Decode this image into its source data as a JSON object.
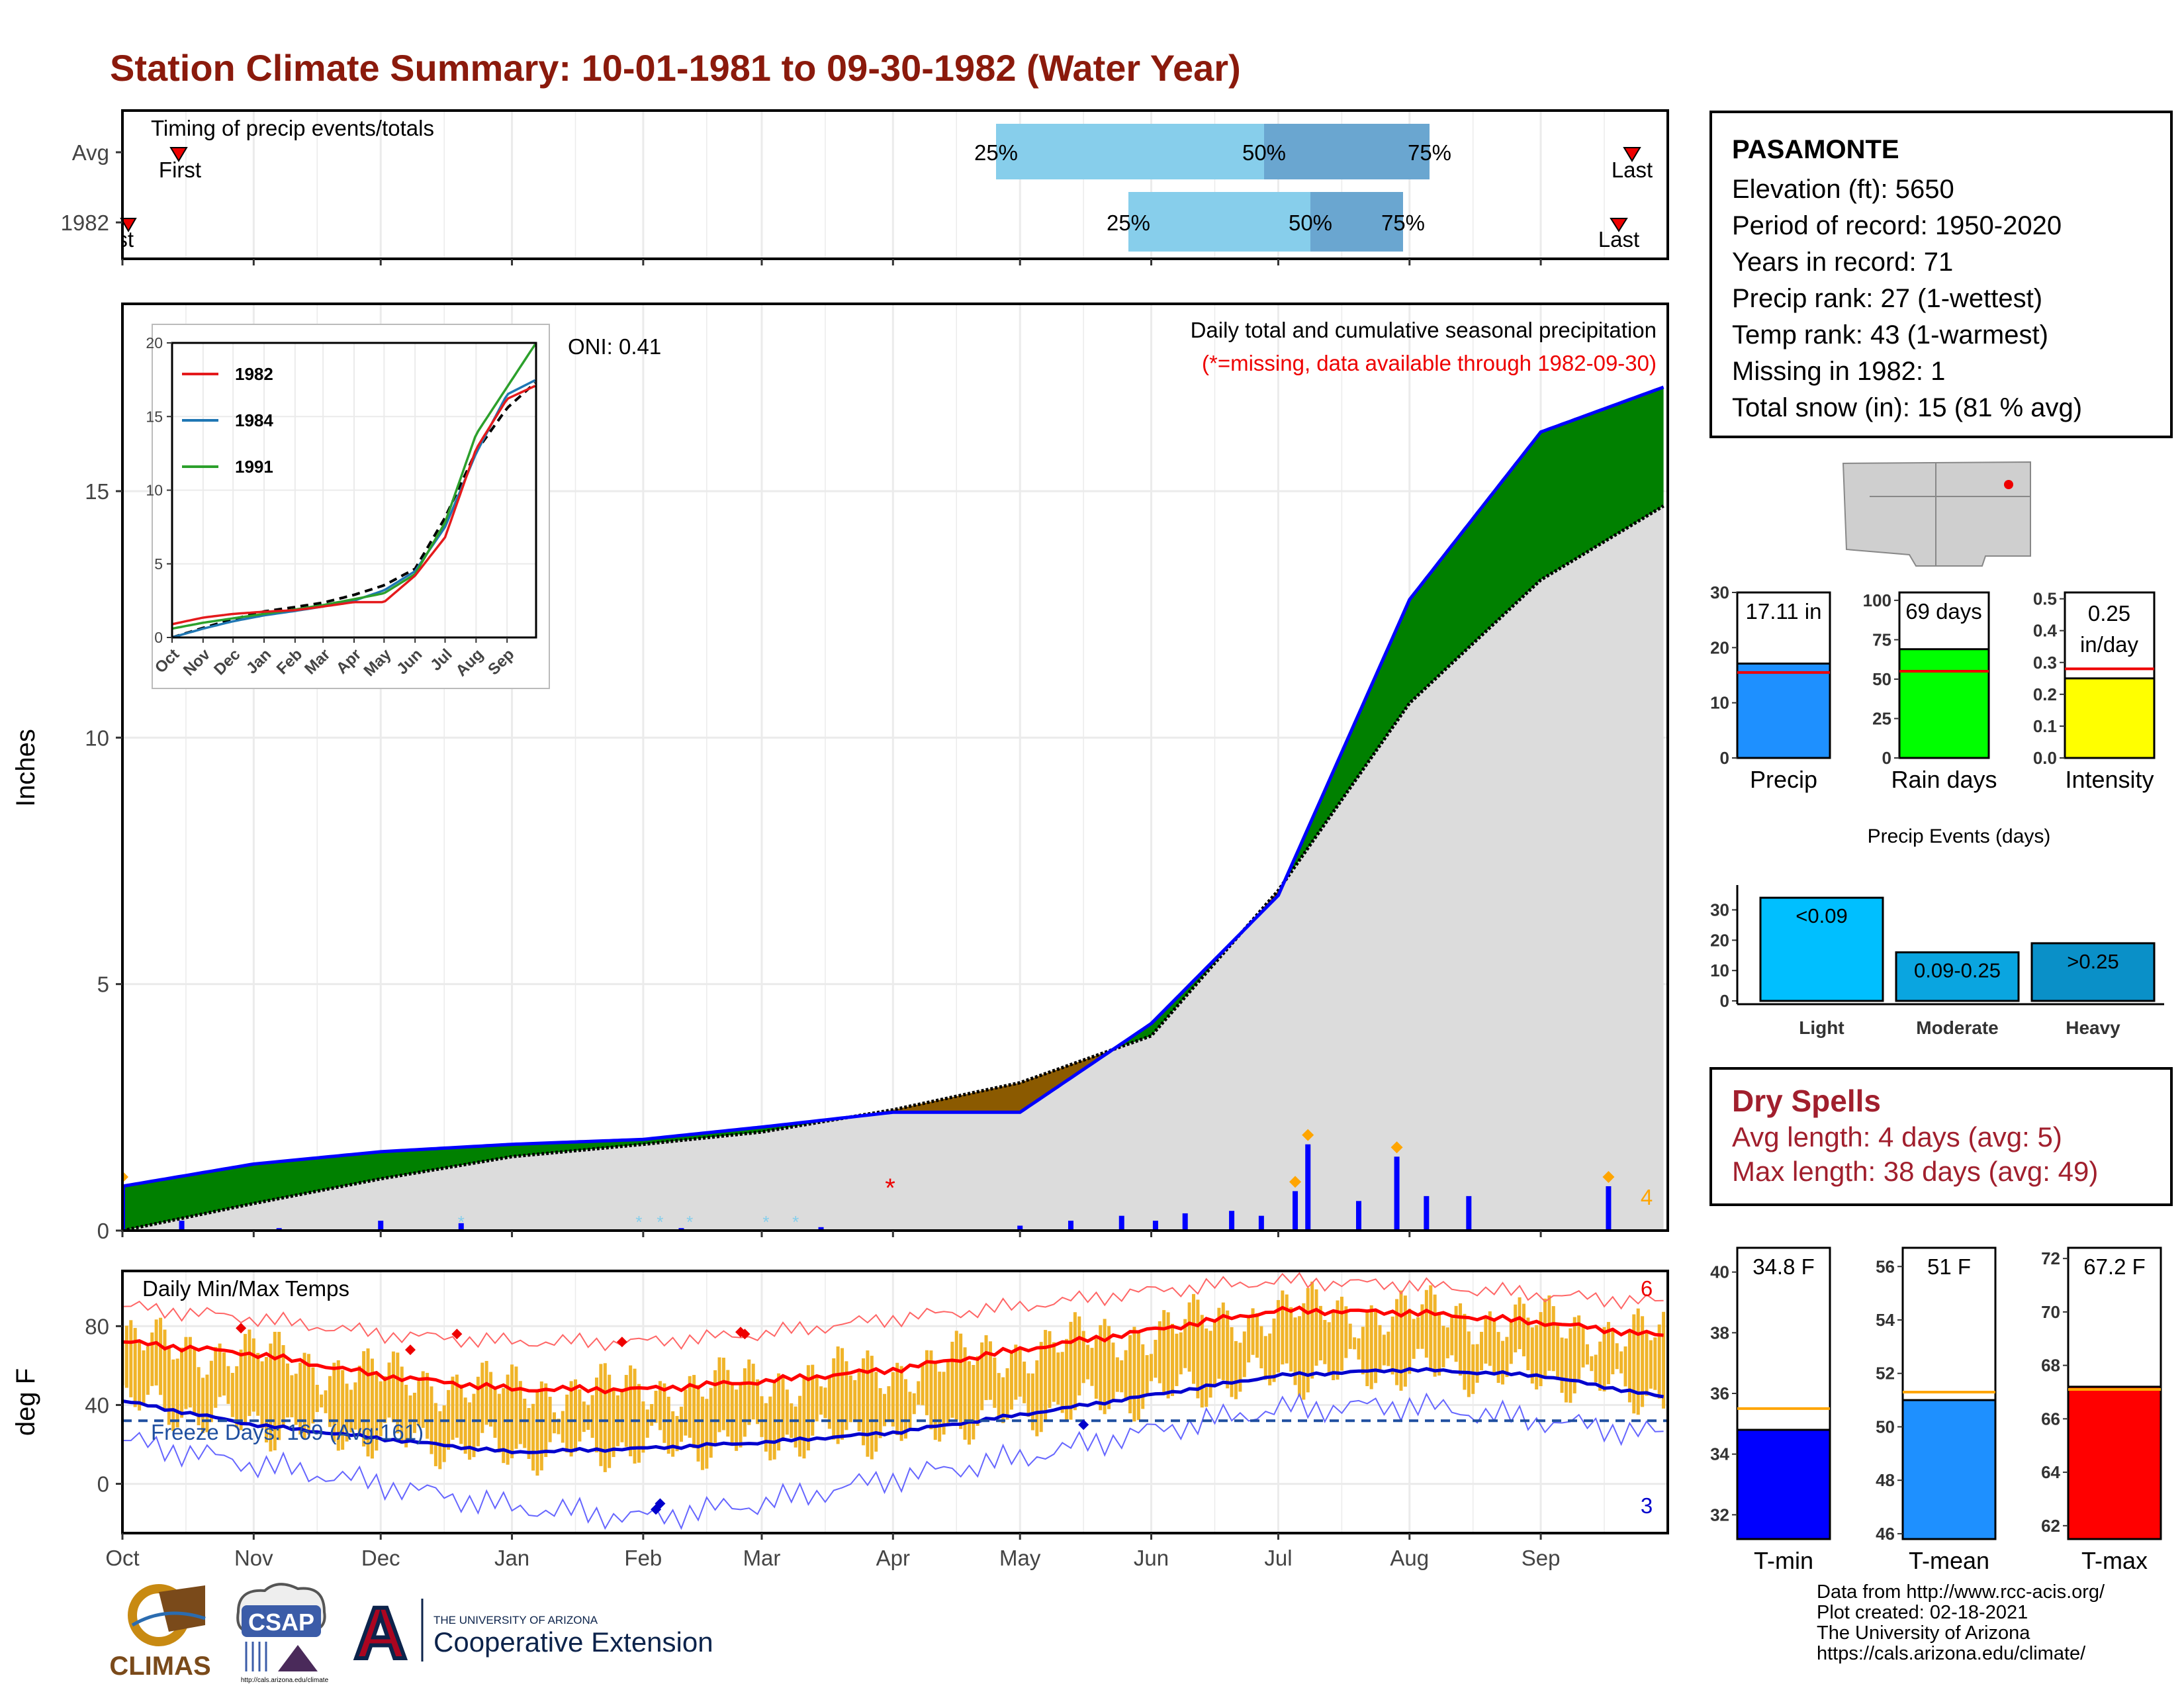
{
  "title": "Station Climate Summary: 10-01-1981 to 09-30-1982 (Water Year)",
  "timing": {
    "label": "Timing of precip events/totals",
    "rows": [
      "Avg",
      "1982"
    ],
    "avg": {
      "first": "First",
      "last": "Last",
      "p25": "25%",
      "p50": "50%",
      "p75": "75%"
    },
    "y1982": {
      "first": "First",
      "last": "Last",
      "p25": "25%",
      "p50": "50%",
      "p75": "75%"
    }
  },
  "precip_panel": {
    "ylabel": "Inches",
    "oni": "ONI: 0.41",
    "note1": "Daily total and cumulative seasonal precipitation",
    "note2": "(*=missing, data available through 1982-09-30)",
    "corner_count": "4",
    "yticks": [
      "0",
      "5",
      "10",
      "15"
    ]
  },
  "inset": {
    "legend": [
      "1982",
      "1984",
      "1991"
    ],
    "yticks": [
      "0",
      "5",
      "10",
      "15",
      "20"
    ],
    "xticks": [
      "Oct",
      "Nov",
      "Dec",
      "Jan",
      "Feb",
      "Mar",
      "Apr",
      "May",
      "Jun",
      "Jul",
      "Aug",
      "Sep"
    ]
  },
  "temp_panel": {
    "ylabel": "deg F",
    "label": "Daily Min/Max Temps",
    "freeze": "Freeze Days: 169 (Avg:161)",
    "record_high_count": "6",
    "record_low_count": "3",
    "yticks": [
      "0",
      "40",
      "80"
    ]
  },
  "months": [
    "Oct",
    "Nov",
    "Dec",
    "Jan",
    "Feb",
    "Mar",
    "Apr",
    "May",
    "Jun",
    "Jul",
    "Aug",
    "Sep"
  ],
  "station": {
    "name": "PASAMONTE",
    "lines": [
      "Elevation (ft): 5650",
      "Period of record: 1950-2020",
      "Years in record: 71",
      "Precip rank: 27 (1-wettest)",
      "Temp rank: 43 (1-warmest)",
      "Missing in 1982: 1",
      "Total snow (in): 15 (81 % avg)"
    ]
  },
  "summary_bars": {
    "precip": {
      "label": "Precip",
      "value_text": "17.11 in",
      "value": 17.11,
      "avg": 15.5,
      "yticks": [
        "0",
        "10",
        "20",
        "30"
      ],
      "color": "#1e90ff"
    },
    "rain_days": {
      "label": "Rain days",
      "value_text": "69 days",
      "value": 69,
      "avg": 55,
      "yticks": [
        "0",
        "25",
        "50",
        "75",
        "100"
      ],
      "color": "#00ff00"
    },
    "intensity": {
      "label": "Intensity",
      "value_text1": "0.25",
      "value_text2": "in/day",
      "value": 0.25,
      "avg": 0.28,
      "yticks": [
        "0.0",
        "0.1",
        "0.2",
        "0.3",
        "0.4",
        "0.5"
      ],
      "color": "#ffff00"
    }
  },
  "precip_events": {
    "title": "Precip Events (days)",
    "yticks": [
      "0",
      "10",
      "20",
      "30"
    ],
    "bars": [
      {
        "label": "Light",
        "text": "<0.09",
        "value": 34,
        "color": "#00bfff"
      },
      {
        "label": "Moderate",
        "text": "0.09-0.25",
        "value": 16,
        "color": "#0aa5e0"
      },
      {
        "label": "Heavy",
        "text": ">0.25",
        "value": 19,
        "color": "#0a90c8"
      }
    ]
  },
  "dry_spells": {
    "title": "Dry Spells",
    "avg_line": "Avg length: 4 days (avg: 5)",
    "max_line": "Max length: 38 days (avg: 49)"
  },
  "temp_bars": {
    "tmin": {
      "label": "T-min",
      "value_text": "34.8 F",
      "value": 34.8,
      "avg": 35.5,
      "yticks": [
        "32",
        "34",
        "36",
        "38",
        "40"
      ],
      "color": "#0000ff"
    },
    "tmean": {
      "label": "T-mean",
      "value_text": "51 F",
      "value": 51,
      "avg": 51.3,
      "yticks": [
        "46",
        "48",
        "50",
        "52",
        "54",
        "56"
      ],
      "color": "#1e90ff"
    },
    "tmax": {
      "label": "T-max",
      "value_text": "67.2 F",
      "value": 67.2,
      "avg": 67.1,
      "yticks": [
        "62",
        "64",
        "66",
        "68",
        "70",
        "72"
      ],
      "color": "#ff0000"
    }
  },
  "credits": [
    "Data from http://www.rcc-acis.org/",
    "Plot created: 02-18-2021",
    "The University of Arizona",
    "https://cals.arizona.edu/climate/"
  ],
  "logos": {
    "climas": "CLIMAS",
    "csap": "CSAP",
    "csap_url": "http://cals.arizona.edu/climate",
    "ua_small": "THE UNIVERSITY OF ARIZONA",
    "ua_big": "Cooperative Extension",
    "ua_mark": "A"
  },
  "chart_data": [
    {
      "type": "line",
      "title": "Daily total and cumulative seasonal precipitation",
      "ylabel": "Inches",
      "ylim": [
        0,
        18.8
      ],
      "x": [
        "Oct 1",
        "Nov 1",
        "Dec 1",
        "Jan 1",
        "Feb 1",
        "Mar 1",
        "Apr 1",
        "May 1",
        "Jun 1",
        "Jul 1",
        "Aug 1",
        "Sep 1",
        "Sep 30"
      ],
      "series": [
        {
          "name": "1982",
          "values": [
            0.9,
            1.35,
            1.6,
            1.75,
            1.85,
            2.1,
            2.4,
            2.4,
            4.2,
            6.8,
            12.8,
            16.2,
            17.11
          ]
        },
        {
          "name": "average",
          "values": [
            0.0,
            0.55,
            1.05,
            1.5,
            1.75,
            2.0,
            2.45,
            3.0,
            3.95,
            6.9,
            10.7,
            13.2,
            14.7
          ]
        }
      ],
      "daily_precip": [
        {
          "date": "10-01",
          "value": 0.9
        },
        {
          "date": "10-15",
          "value": 0.2
        },
        {
          "date": "11-07",
          "value": 0.05
        },
        {
          "date": "12-01",
          "value": 0.2
        },
        {
          "date": "12-20",
          "value": 0.15
        },
        {
          "date": "02-10",
          "value": 0.05
        },
        {
          "date": "03-15",
          "value": 0.07
        },
        {
          "date": "05-01",
          "value": 0.1
        },
        {
          "date": "05-13",
          "value": 0.2
        },
        {
          "date": "05-25",
          "value": 0.3
        },
        {
          "date": "06-02",
          "value": 0.2
        },
        {
          "date": "06-09",
          "value": 0.35
        },
        {
          "date": "06-20",
          "value": 0.4
        },
        {
          "date": "06-27",
          "value": 0.3
        },
        {
          "date": "07-05",
          "value": 0.8
        },
        {
          "date": "07-08",
          "value": 1.75
        },
        {
          "date": "07-20",
          "value": 0.6
        },
        {
          "date": "07-29",
          "value": 1.5
        },
        {
          "date": "08-05",
          "value": 0.7
        },
        {
          "date": "08-15",
          "value": 0.7
        },
        {
          "date": "09-17",
          "value": 0.9
        }
      ]
    },
    {
      "type": "line",
      "title": "Daily Min/Max Temps",
      "ylabel": "deg F",
      "ylim": [
        -25,
        108
      ],
      "x": [
        "Oct",
        "Nov",
        "Dec",
        "Jan",
        "Feb",
        "Mar",
        "Apr",
        "May",
        "Jun",
        "Jul",
        "Aug",
        "Sep",
        "Sep 30"
      ],
      "series": [
        {
          "name": "avg max",
          "values": [
            72,
            66,
            55,
            48,
            48,
            52,
            58,
            68,
            78,
            88,
            87,
            82,
            75
          ]
        },
        {
          "name": "avg min",
          "values": [
            42,
            30,
            23,
            16,
            18,
            21,
            26,
            35,
            45,
            55,
            58,
            55,
            44
          ]
        },
        {
          "name": "record high",
          "values": [
            90,
            84,
            76,
            72,
            72,
            76,
            84,
            90,
            98,
            103,
            101,
            96,
            92
          ]
        },
        {
          "name": "record low",
          "values": [
            22,
            10,
            0,
            -12,
            -17,
            -10,
            3,
            13,
            27,
            38,
            40,
            32,
            25
          ]
        }
      ],
      "freeze_line": 32
    }
  ]
}
